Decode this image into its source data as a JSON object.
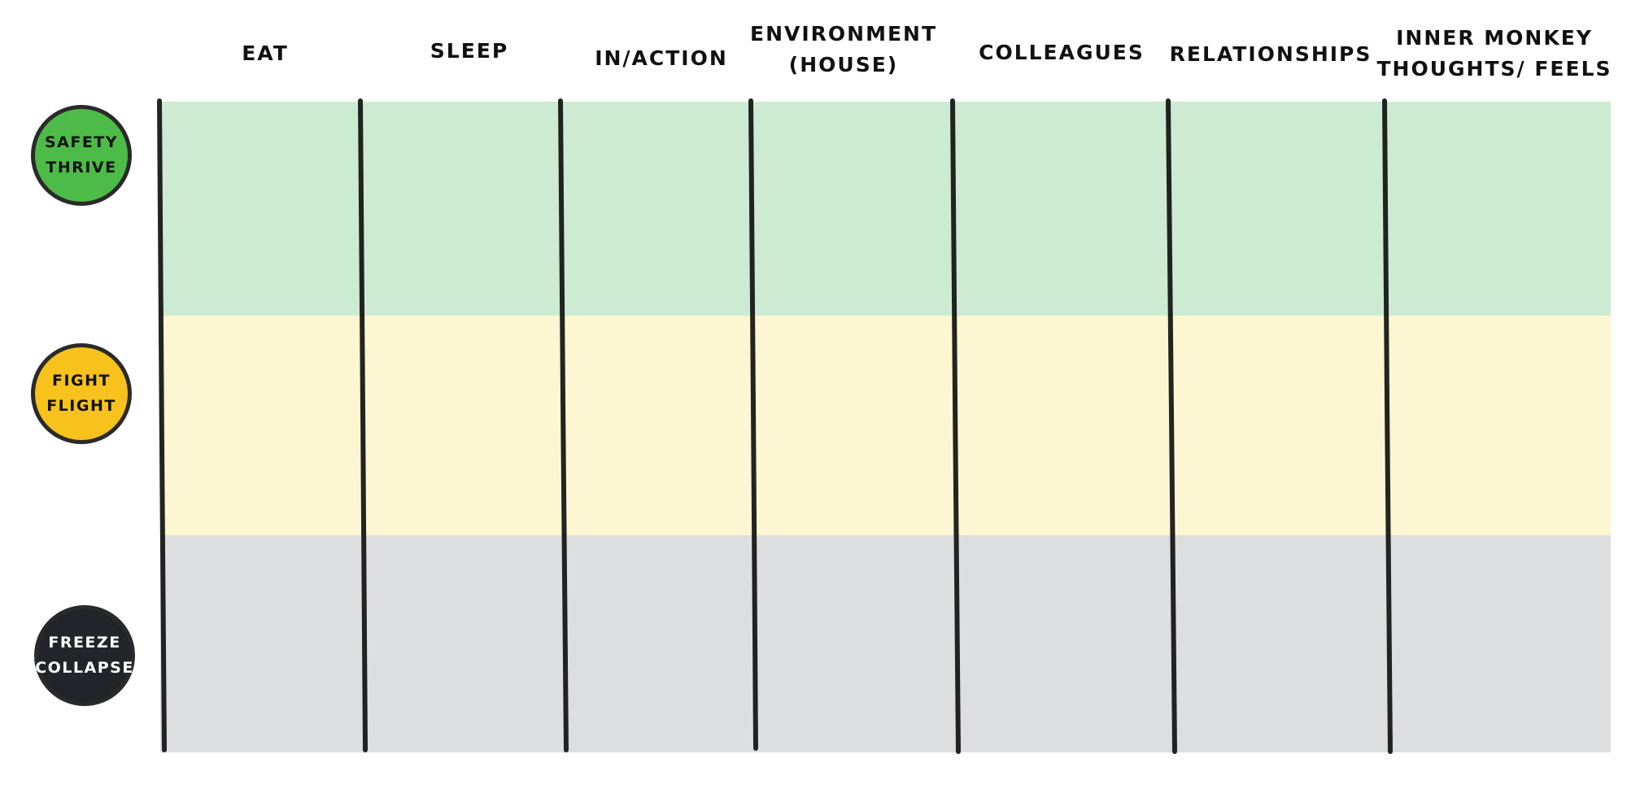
{
  "columns": [
    {
      "id": "eat",
      "label": "EAT"
    },
    {
      "id": "sleep",
      "label": "SLEEP"
    },
    {
      "id": "in-action",
      "label": "IN/ACTION"
    },
    {
      "id": "environment",
      "label": "ENVIRONMENT\n(HOUSE)"
    },
    {
      "id": "colleagues",
      "label": "COLLEAGUES"
    },
    {
      "id": "relationships",
      "label": "RELATIONSHIPS"
    },
    {
      "id": "inner-monkey",
      "label": "INNER MONKEY\nTHOUGHTS/ FEELS"
    }
  ],
  "zones": [
    {
      "id": "safety-thrive",
      "label": "SAFETY\nTHRIVE",
      "badge_color": "#4cbb47",
      "band_color": "#cdebd2",
      "text_color": "#111111"
    },
    {
      "id": "fight-flight",
      "label": "FIGHT\nFLIGHT",
      "badge_color": "#f6c21b",
      "band_color": "#fcf6d3",
      "text_color": "#111111"
    },
    {
      "id": "freeze-collapse",
      "label": "FREEZE\nCOLLAPSE",
      "badge_color": "#22242a",
      "band_color": "#dcdedf",
      "text_color": "#ffffff"
    }
  ]
}
